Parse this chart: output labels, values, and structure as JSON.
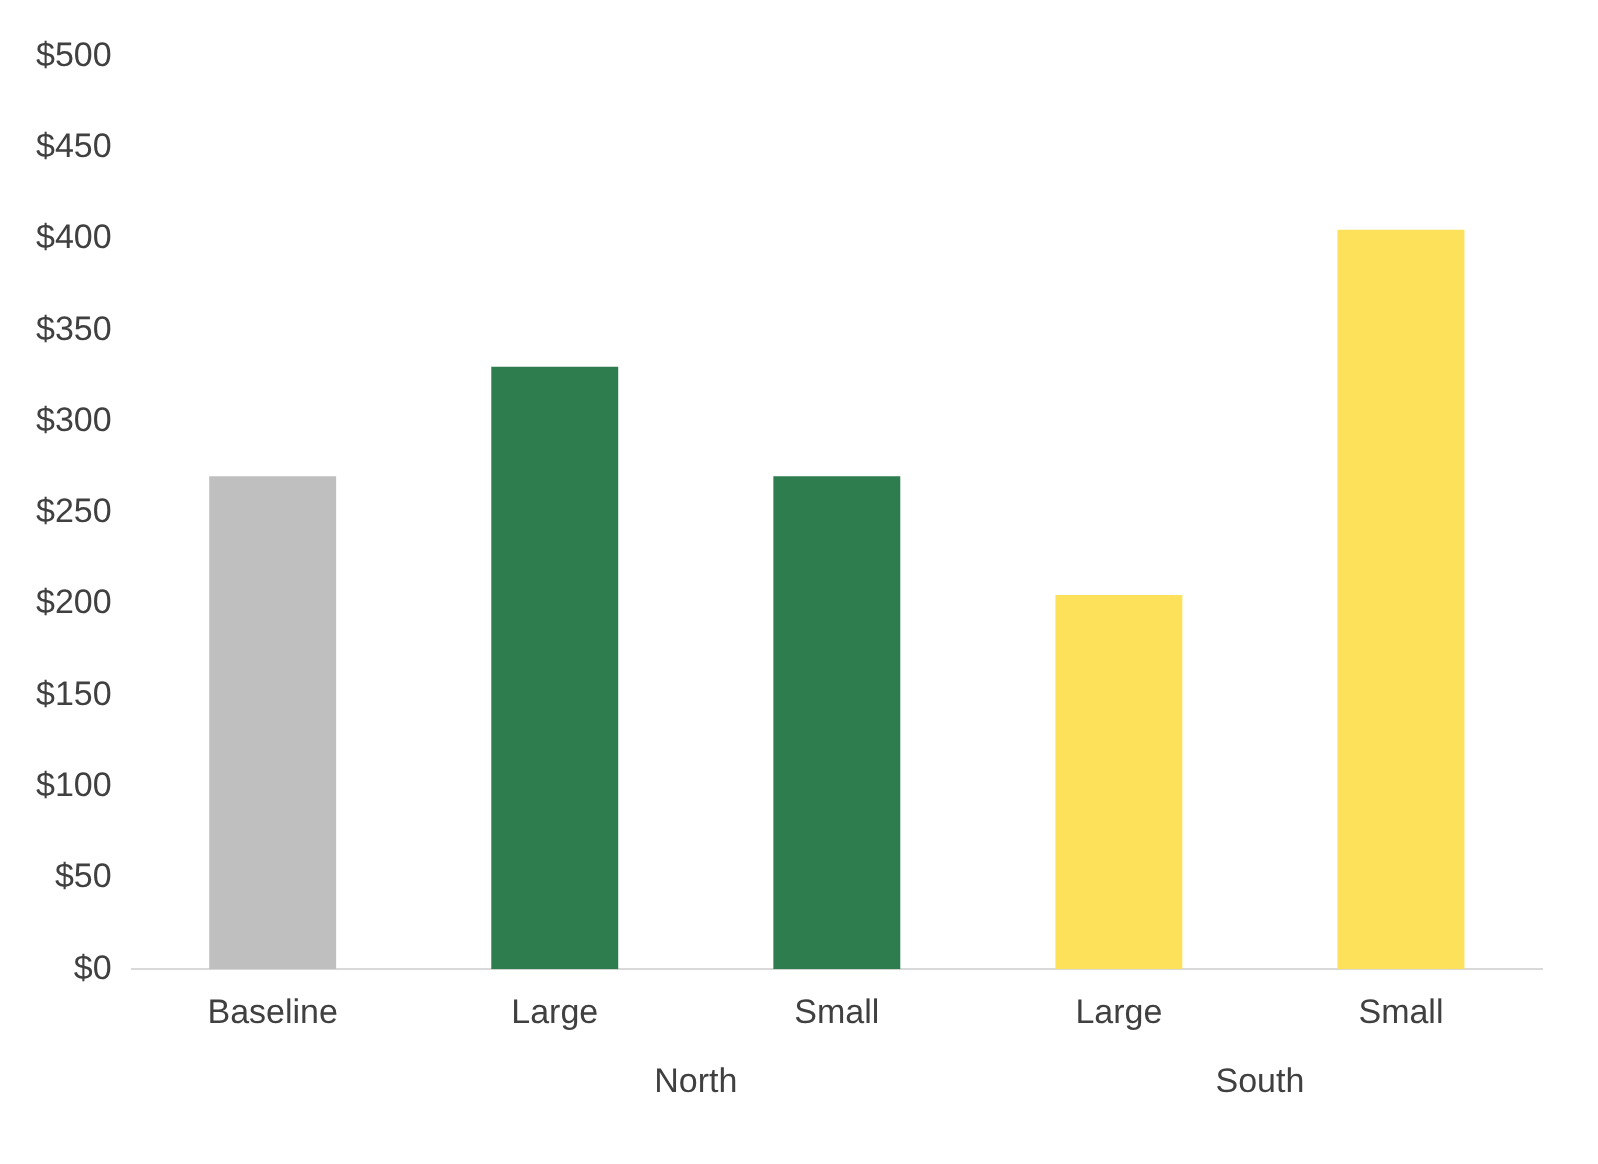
{
  "chart_data": {
    "type": "bar",
    "categories": [
      "Baseline",
      "Large",
      "Small",
      "Large",
      "Small"
    ],
    "values": [
      270,
      330,
      270,
      205,
      405
    ],
    "colors": [
      "#bfbfbf",
      "#2e7d4f",
      "#2e7d4f",
      "#fde15a",
      "#fde15a"
    ],
    "ylim": [
      0,
      500
    ],
    "yticks": [
      {
        "value": 0,
        "label": "$0"
      },
      {
        "value": 50,
        "label": "$50"
      },
      {
        "value": 100,
        "label": "$100"
      },
      {
        "value": 150,
        "label": "$150"
      },
      {
        "value": 200,
        "label": "$200"
      },
      {
        "value": 250,
        "label": "$250"
      },
      {
        "value": 300,
        "label": "$300"
      },
      {
        "value": 350,
        "label": "$350"
      },
      {
        "value": 400,
        "label": "$400"
      },
      {
        "value": 450,
        "label": "$450"
      },
      {
        "value": 500,
        "label": "$500"
      }
    ],
    "annotations": [
      "North",
      "South"
    ],
    "grid": false,
    "legend": false
  }
}
